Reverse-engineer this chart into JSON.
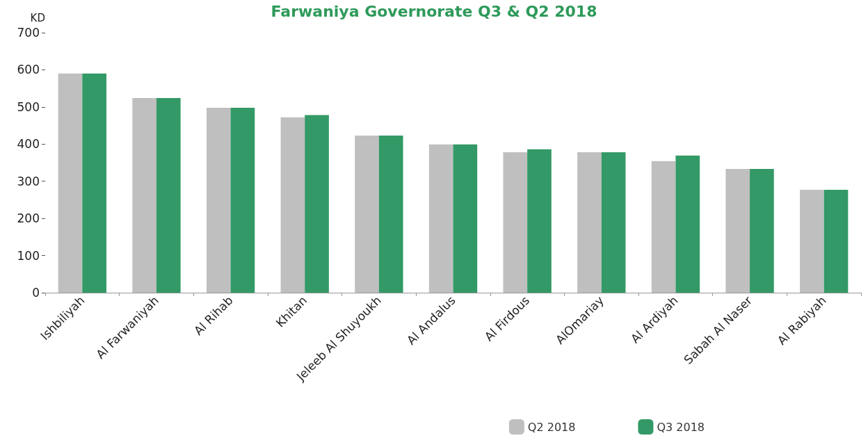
{
  "chart_data": {
    "type": "bar",
    "title": "Farwaniya Governorate Q3 & Q2 2018",
    "ylabel": "KD",
    "categories": [
      "Ishbiliyah",
      "Al Farwaniyah",
      "Al Rihab",
      "Khitan",
      "Jeleeb Al Shuyoukh",
      "Al Andalus",
      "Al Firdous",
      "AlOmariay",
      "Al Ardiyah",
      "Sabah Al Naser",
      "Al Rabiyah"
    ],
    "series": [
      {
        "name": "Q2 2018",
        "color": "#bfbfbf",
        "values": [
          590,
          524,
          498,
          472,
          423,
          399,
          378,
          378,
          354,
          333,
          277
        ]
      },
      {
        "name": "Q3 2018",
        "color": "#339966",
        "values": [
          590,
          524,
          498,
          478,
          423,
          399,
          386,
          378,
          369,
          333,
          277
        ]
      }
    ],
    "ylim": [
      0,
      700
    ],
    "yticks": [
      0,
      100,
      200,
      300,
      400,
      500,
      600,
      700
    ],
    "grid": false,
    "legend": "bottom right"
  }
}
